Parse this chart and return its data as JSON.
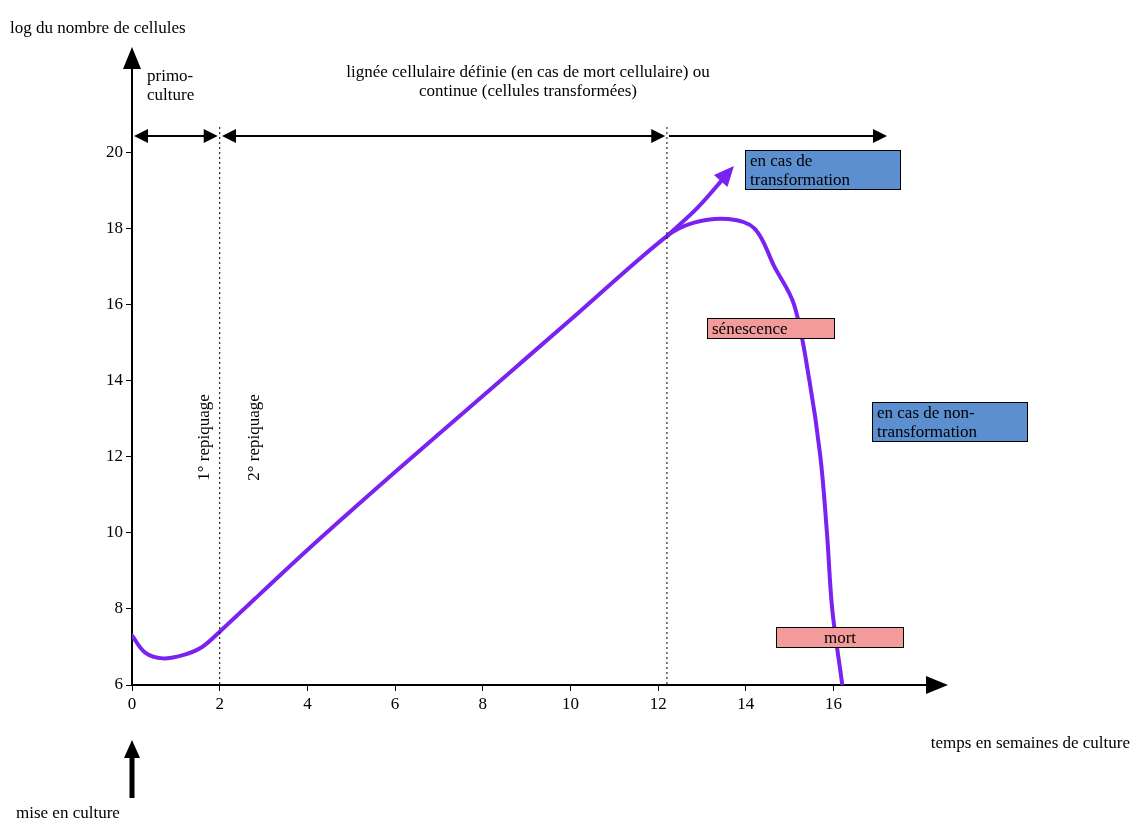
{
  "chart_data": {
    "type": "line",
    "xlabel": "temps en semaines de culture",
    "ylabel": "log du nombre de cellules",
    "xlim": [
      0,
      18.2
    ],
    "ylim": [
      6,
      22.3
    ],
    "xticks": [
      0,
      2,
      4,
      6,
      8,
      10,
      12,
      14,
      16
    ],
    "yticks": [
      6,
      8,
      10,
      12,
      14,
      16,
      18,
      20
    ],
    "grid": false,
    "legend": false,
    "marker": "none",
    "line_style": "solid",
    "series": [
      {
        "color": "#7a22f0",
        "x": [
          0,
          0.3,
          0.7,
          1.2,
          1.6,
          2,
          4,
          6,
          8,
          10,
          12.2,
          12.8,
          13.6,
          14.2,
          14.65,
          15.1,
          15.45,
          15.7,
          15.85,
          15.97,
          16.2
        ],
        "values": [
          7.3,
          6.85,
          6.7,
          6.8,
          7.0,
          7.4,
          9.55,
          11.6,
          13.6,
          15.6,
          17.8,
          18.15,
          18.25,
          18.0,
          17.0,
          16.0,
          14.0,
          12.0,
          10.0,
          8.0,
          6.0
        ]
      },
      {
        "color": "#7a22f0",
        "x": [
          12.2,
          12.9,
          13.55
        ],
        "values": [
          17.8,
          18.55,
          19.4
        ]
      }
    ],
    "ref_lines": [
      {
        "axis": "x",
        "value": 2
      },
      {
        "axis": "x",
        "value": 12.2
      }
    ],
    "annotations": [
      "primo-culture",
      "lignée cellulaire définie (en cas de mort cellulaire) ou continue (cellules transformées)",
      "1° repiquage",
      "2° repiquage",
      "en cas de transformation",
      "sénescence",
      "en cas de non-transformation",
      "mort",
      "mise en culture"
    ]
  }
}
